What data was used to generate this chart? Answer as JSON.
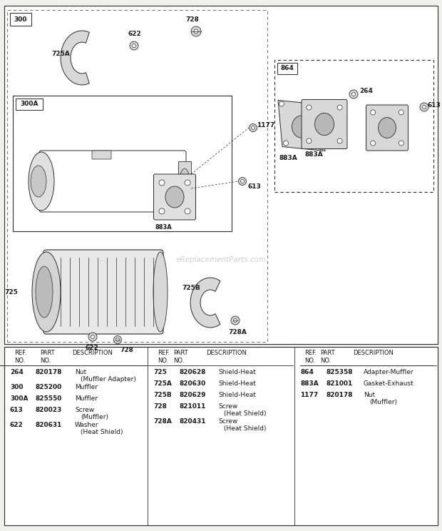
{
  "bg_color": "#f0f0ec",
  "white": "#ffffff",
  "line_color": "#2a2a2a",
  "text_color": "#1a1a1a",
  "gray_light": "#e8e8e8",
  "gray_mid": "#cccccc",
  "gray_dark": "#aaaaaa",
  "watermark": "eReplacementParts.com",
  "table": {
    "col1_rows": [
      [
        "264",
        "820178",
        "Nut",
        "(Muffler Adapter)"
      ],
      [
        "300",
        "825200",
        "Muffler",
        ""
      ],
      [
        "300A",
        "825550",
        "Muffler",
        ""
      ],
      [
        "613",
        "820023",
        "Screw",
        "(Muffler)"
      ],
      [
        "622",
        "820631",
        "Washer",
        "(Heat Shield)"
      ]
    ],
    "col2_rows": [
      [
        "725",
        "820628",
        "Shield-Heat",
        ""
      ],
      [
        "725A",
        "820630",
        "Shield-Heat",
        ""
      ],
      [
        "725B",
        "820629",
        "Shield-Heat",
        ""
      ],
      [
        "728",
        "821011",
        "Screw",
        "(Heat Shield)"
      ],
      [
        "728A",
        "820431",
        "Screw",
        "(Heat Shield)"
      ]
    ],
    "col3_rows": [
      [
        "864",
        "825358",
        "Adapter-Muffler",
        ""
      ],
      [
        "883A",
        "821001",
        "Gasket-Exhaust",
        ""
      ],
      [
        "1177",
        "820178",
        "Nut",
        "(Muffler)"
      ]
    ]
  }
}
